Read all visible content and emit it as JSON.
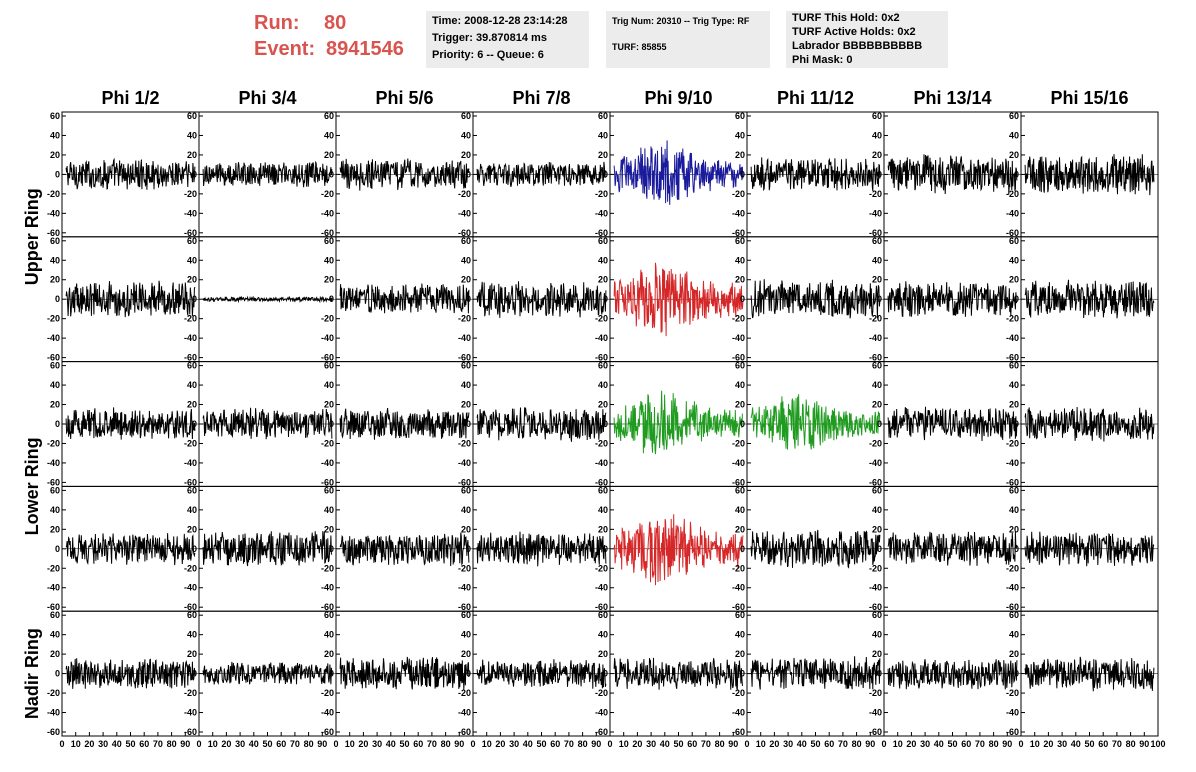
{
  "header": {
    "run_label": "Run:",
    "run_value": "80",
    "event_label": "Event:",
    "event_value": "8941546"
  },
  "info1": {
    "time": "Time: 2008-12-28 23:14:28",
    "trigger": "Trigger: 39.870814 ms",
    "priority": "Priority: 6 -- Queue: 6"
  },
  "info2": {
    "trig": "Trig Num: 20310 -- Trig Type: RF",
    "turf": "TURF: 85855"
  },
  "info3": {
    "hold": "TURF This Hold: 0x2",
    "active": "TURF Active Holds: 0x2",
    "labrador": "Labrador BBBBBBBBBB",
    "phimask": "Phi Mask: 0"
  },
  "chart_data": {
    "type": "line",
    "columns": [
      "Phi 1/2",
      "Phi 3/4",
      "Phi 5/6",
      "Phi 7/8",
      "Phi 9/10",
      "Phi 11/12",
      "Phi 13/14",
      "Phi 15/16"
    ],
    "rows": [
      "Upper Ring",
      "Upper Ring",
      "Lower Ring",
      "Lower Ring",
      "Nadir Ring"
    ],
    "row_labels": [
      {
        "label": "Upper Ring",
        "rows": [
          0,
          1
        ]
      },
      {
        "label": "Lower Ring",
        "rows": [
          2,
          3
        ]
      },
      {
        "label": "Nadir Ring",
        "rows": [
          4
        ]
      }
    ],
    "xlim": [
      0,
      100
    ],
    "ylim": [
      -60,
      60
    ],
    "x_ticks": [
      0,
      10,
      20,
      30,
      40,
      50,
      60,
      70,
      80,
      90,
      100
    ],
    "x_tick_labels": [
      "0",
      "10",
      "20",
      "30",
      "40",
      "50",
      "60",
      "70",
      "80",
      "90",
      "100"
    ],
    "y_ticks": [
      60,
      40,
      20,
      0,
      -20,
      -40,
      -60
    ],
    "y_tick_labels": [
      "60",
      "40",
      "20",
      "0",
      "-20",
      "-40",
      "-60"
    ],
    "colors": {
      "default": "#000000",
      "blue": "#1a1a9c",
      "red": "#d62728",
      "green": "#1f9c1f"
    },
    "panels": [
      {
        "row": 0,
        "col": 0,
        "amp": 14,
        "color": "default"
      },
      {
        "row": 0,
        "col": 1,
        "amp": 11,
        "color": "default"
      },
      {
        "row": 0,
        "col": 2,
        "amp": 14,
        "color": "default"
      },
      {
        "row": 0,
        "col": 3,
        "amp": 11,
        "color": "default"
      },
      {
        "row": 0,
        "col": 4,
        "amp": 22,
        "color": "blue"
      },
      {
        "row": 0,
        "col": 5,
        "amp": 15,
        "color": "default"
      },
      {
        "row": 0,
        "col": 6,
        "amp": 17,
        "color": "default"
      },
      {
        "row": 0,
        "col": 7,
        "amp": 18,
        "color": "default"
      },
      {
        "row": 1,
        "col": 0,
        "amp": 16,
        "color": "default"
      },
      {
        "row": 1,
        "col": 1,
        "amp": 2,
        "color": "default"
      },
      {
        "row": 1,
        "col": 2,
        "amp": 15,
        "color": "default"
      },
      {
        "row": 1,
        "col": 3,
        "amp": 16,
        "color": "default"
      },
      {
        "row": 1,
        "col": 4,
        "amp": 26,
        "color": "red"
      },
      {
        "row": 1,
        "col": 5,
        "amp": 17,
        "color": "default"
      },
      {
        "row": 1,
        "col": 6,
        "amp": 15,
        "color": "default"
      },
      {
        "row": 1,
        "col": 7,
        "amp": 17,
        "color": "default"
      },
      {
        "row": 2,
        "col": 0,
        "amp": 14,
        "color": "default"
      },
      {
        "row": 2,
        "col": 1,
        "amp": 14,
        "color": "default"
      },
      {
        "row": 2,
        "col": 2,
        "amp": 14,
        "color": "default"
      },
      {
        "row": 2,
        "col": 3,
        "amp": 15,
        "color": "default"
      },
      {
        "row": 2,
        "col": 4,
        "amp": 22,
        "color": "green"
      },
      {
        "row": 2,
        "col": 5,
        "amp": 20,
        "color": "green"
      },
      {
        "row": 2,
        "col": 6,
        "amp": 15,
        "color": "default"
      },
      {
        "row": 2,
        "col": 7,
        "amp": 15,
        "color": "default"
      },
      {
        "row": 3,
        "col": 0,
        "amp": 14,
        "color": "default"
      },
      {
        "row": 3,
        "col": 1,
        "amp": 16,
        "color": "default"
      },
      {
        "row": 3,
        "col": 2,
        "amp": 15,
        "color": "default"
      },
      {
        "row": 3,
        "col": 3,
        "amp": 15,
        "color": "default"
      },
      {
        "row": 3,
        "col": 4,
        "amp": 26,
        "color": "red"
      },
      {
        "row": 3,
        "col": 5,
        "amp": 17,
        "color": "default"
      },
      {
        "row": 3,
        "col": 6,
        "amp": 15,
        "color": "default"
      },
      {
        "row": 3,
        "col": 7,
        "amp": 15,
        "color": "default"
      },
      {
        "row": 4,
        "col": 0,
        "amp": 14,
        "color": "default"
      },
      {
        "row": 4,
        "col": 1,
        "amp": 10,
        "color": "default"
      },
      {
        "row": 4,
        "col": 2,
        "amp": 15,
        "color": "default"
      },
      {
        "row": 4,
        "col": 3,
        "amp": 13,
        "color": "default"
      },
      {
        "row": 4,
        "col": 4,
        "amp": 14,
        "color": "default"
      },
      {
        "row": 4,
        "col": 5,
        "amp": 15,
        "color": "default"
      },
      {
        "row": 4,
        "col": 6,
        "amp": 14,
        "color": "default"
      },
      {
        "row": 4,
        "col": 7,
        "amp": 15,
        "color": "default"
      }
    ]
  }
}
